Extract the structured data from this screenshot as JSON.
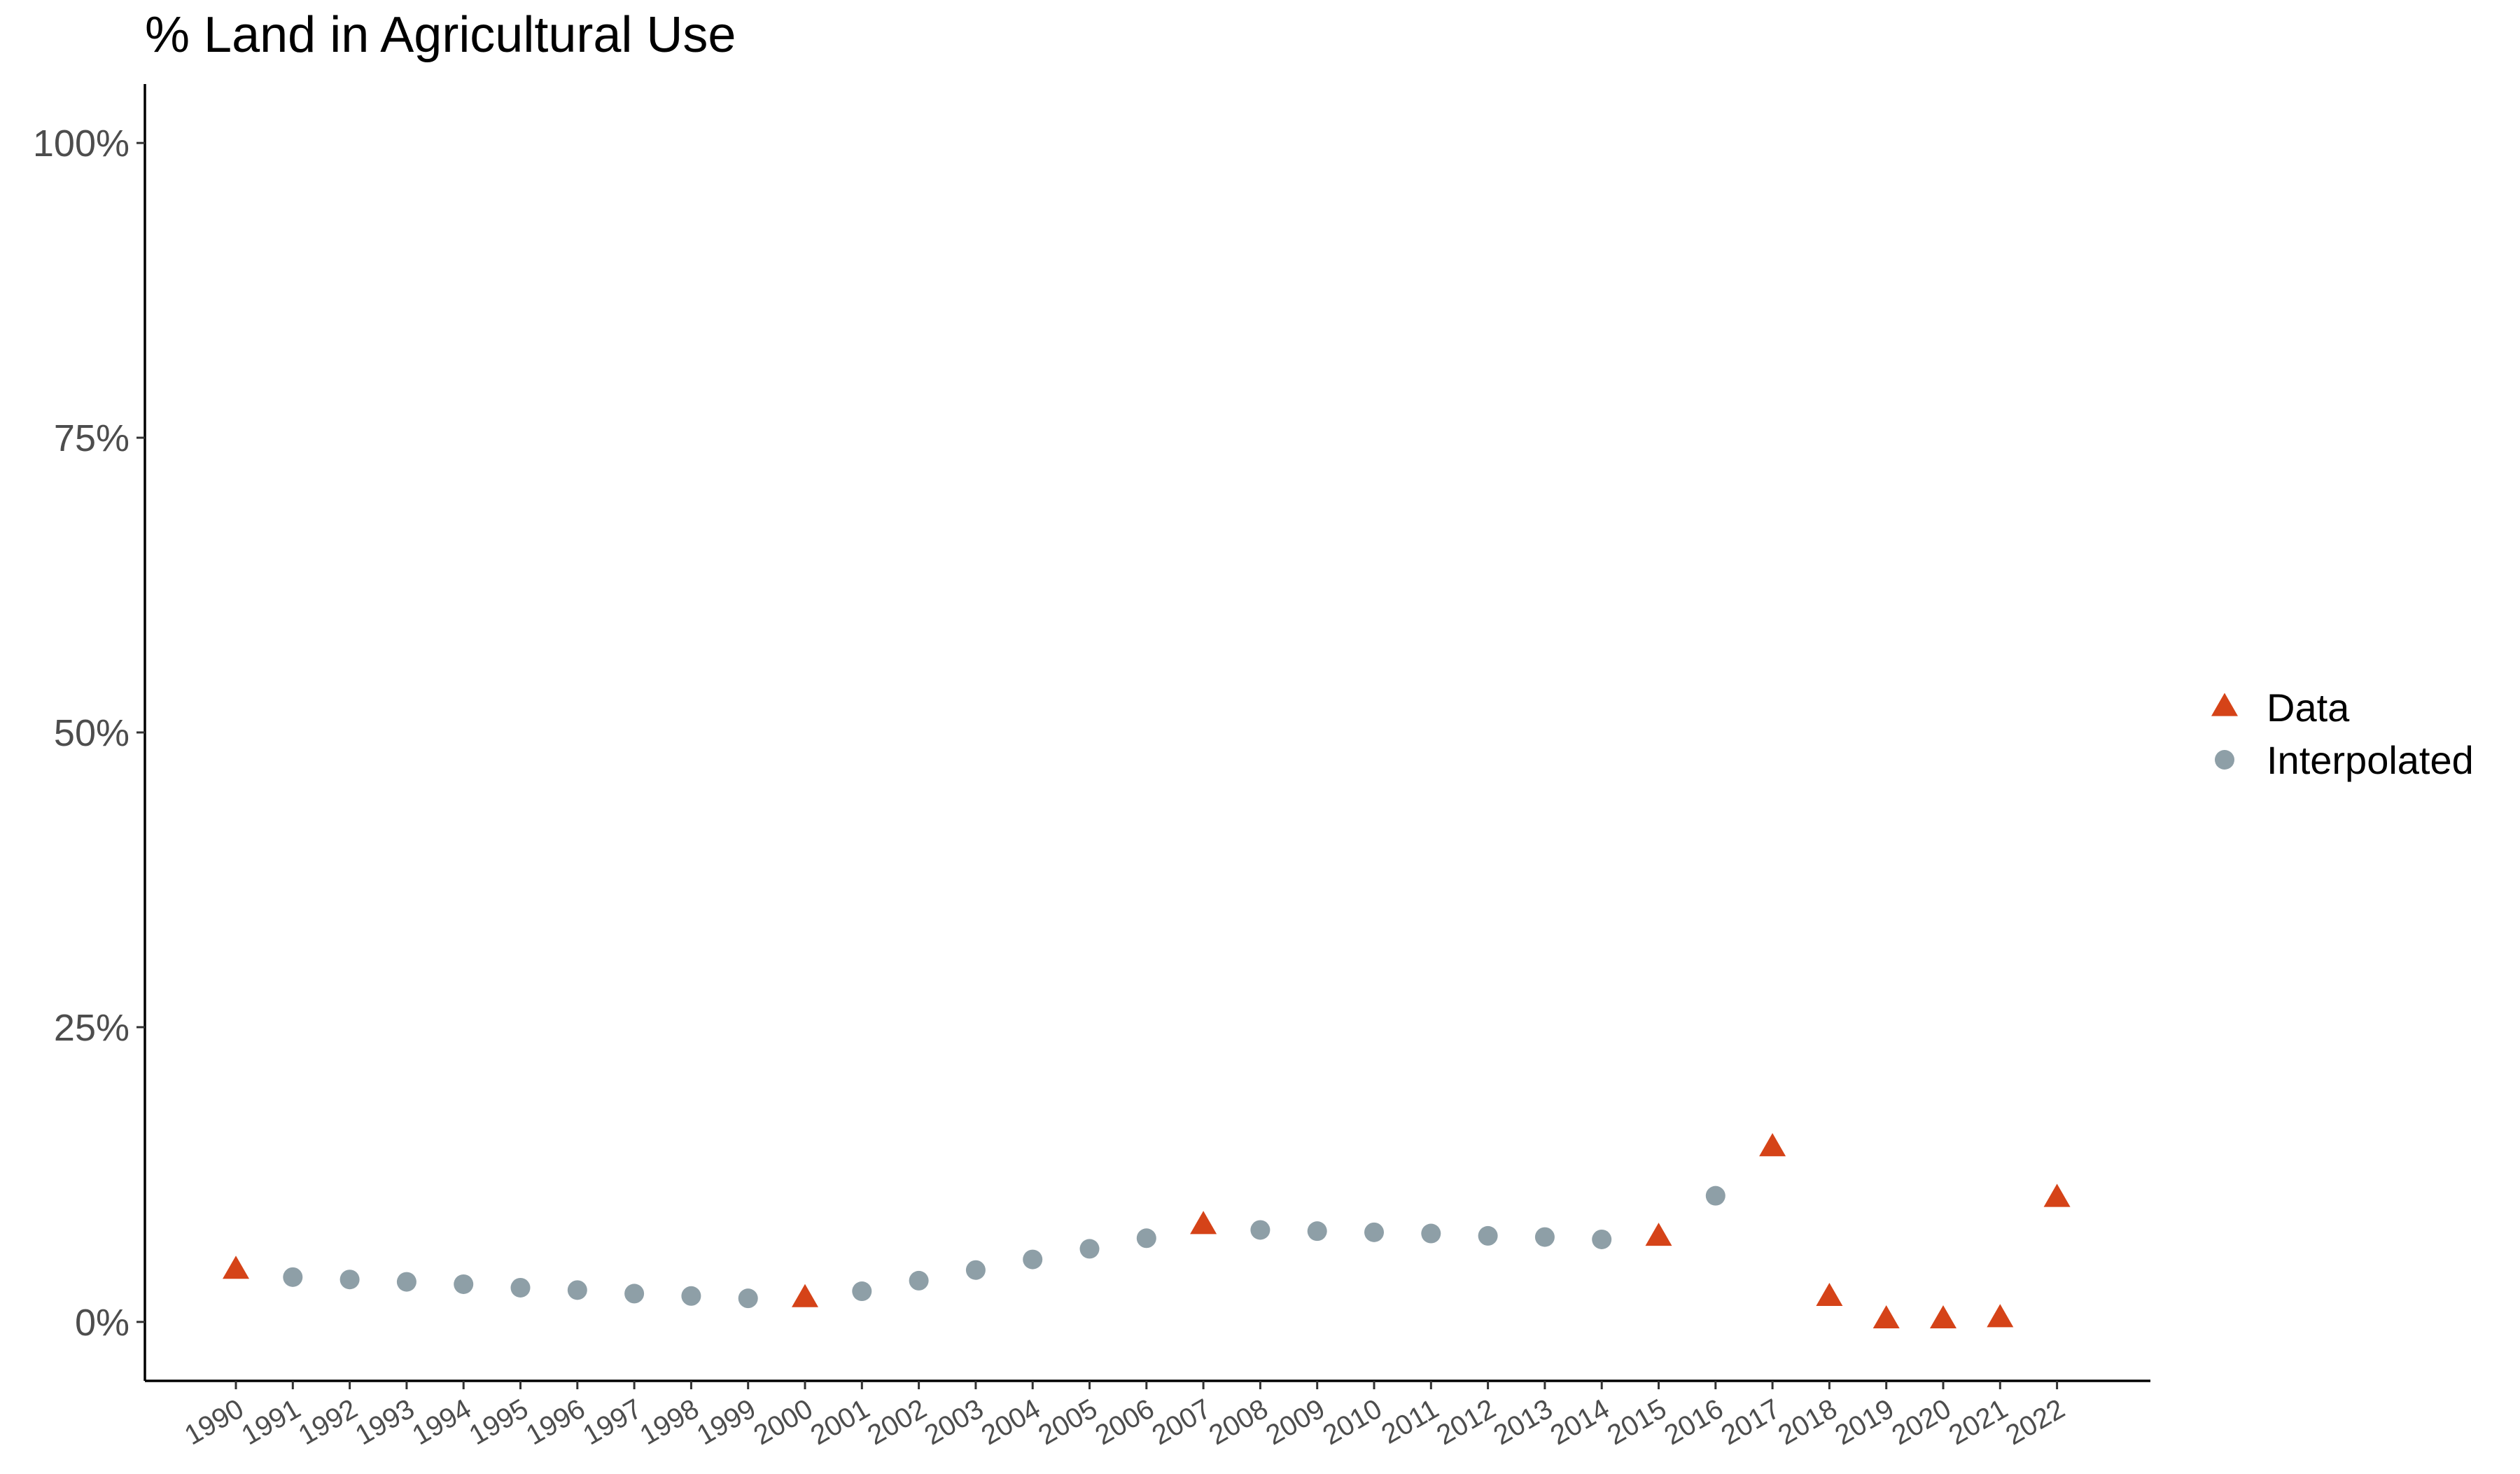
{
  "chart_data": {
    "type": "scatter",
    "title": "% Land in Agricultural Use",
    "xlabel": "",
    "ylabel": "",
    "ylim": [
      -0.05,
      1.05
    ],
    "y_ticks": [
      0,
      0.25,
      0.5,
      0.75,
      1.0
    ],
    "y_tick_labels": [
      "0%",
      "25%",
      "50%",
      "75%",
      "100%"
    ],
    "categories": [
      "1990",
      "1991",
      "1992",
      "1993",
      "1994",
      "1995",
      "1996",
      "1997",
      "1998",
      "1999",
      "2000",
      "2001",
      "2002",
      "2003",
      "2004",
      "2005",
      "2006",
      "2007",
      "2008",
      "2009",
      "2010",
      "2011",
      "2012",
      "2013",
      "2014",
      "2015",
      "2016",
      "2017",
      "2018",
      "2019",
      "2020",
      "2021",
      "2022"
    ],
    "x_tick_rotation_deg": -30,
    "grid": false,
    "legend_position": "right",
    "series": [
      {
        "name": "Data",
        "marker": "triangle",
        "color": "#D54318",
        "points": [
          {
            "x": "1990",
            "y": 0.044
          },
          {
            "x": "2000",
            "y": 0.02
          },
          {
            "x": "2007",
            "y": 0.082
          },
          {
            "x": "2015",
            "y": 0.072
          },
          {
            "x": "2017",
            "y": 0.148
          },
          {
            "x": "2018",
            "y": 0.021
          },
          {
            "x": "2019",
            "y": 0.002
          },
          {
            "x": "2020",
            "y": 0.002
          },
          {
            "x": "2021",
            "y": 0.003
          },
          {
            "x": "2022",
            "y": 0.105
          }
        ]
      },
      {
        "name": "Interpolated",
        "marker": "circle",
        "color": "#8E9FA7",
        "points": [
          {
            "x": "1991",
            "y": 0.038
          },
          {
            "x": "1992",
            "y": 0.036
          },
          {
            "x": "1993",
            "y": 0.034
          },
          {
            "x": "1994",
            "y": 0.032
          },
          {
            "x": "1995",
            "y": 0.029
          },
          {
            "x": "1996",
            "y": 0.027
          },
          {
            "x": "1997",
            "y": 0.024
          },
          {
            "x": "1998",
            "y": 0.022
          },
          {
            "x": "1999",
            "y": 0.02
          },
          {
            "x": "2001",
            "y": 0.026
          },
          {
            "x": "2002",
            "y": 0.035
          },
          {
            "x": "2003",
            "y": 0.044
          },
          {
            "x": "2004",
            "y": 0.053
          },
          {
            "x": "2005",
            "y": 0.062
          },
          {
            "x": "2006",
            "y": 0.071
          },
          {
            "x": "2008",
            "y": 0.078
          },
          {
            "x": "2009",
            "y": 0.077
          },
          {
            "x": "2010",
            "y": 0.076
          },
          {
            "x": "2011",
            "y": 0.075
          },
          {
            "x": "2012",
            "y": 0.073
          },
          {
            "x": "2013",
            "y": 0.072
          },
          {
            "x": "2014",
            "y": 0.07
          },
          {
            "x": "2016",
            "y": 0.107
          }
        ]
      }
    ]
  }
}
